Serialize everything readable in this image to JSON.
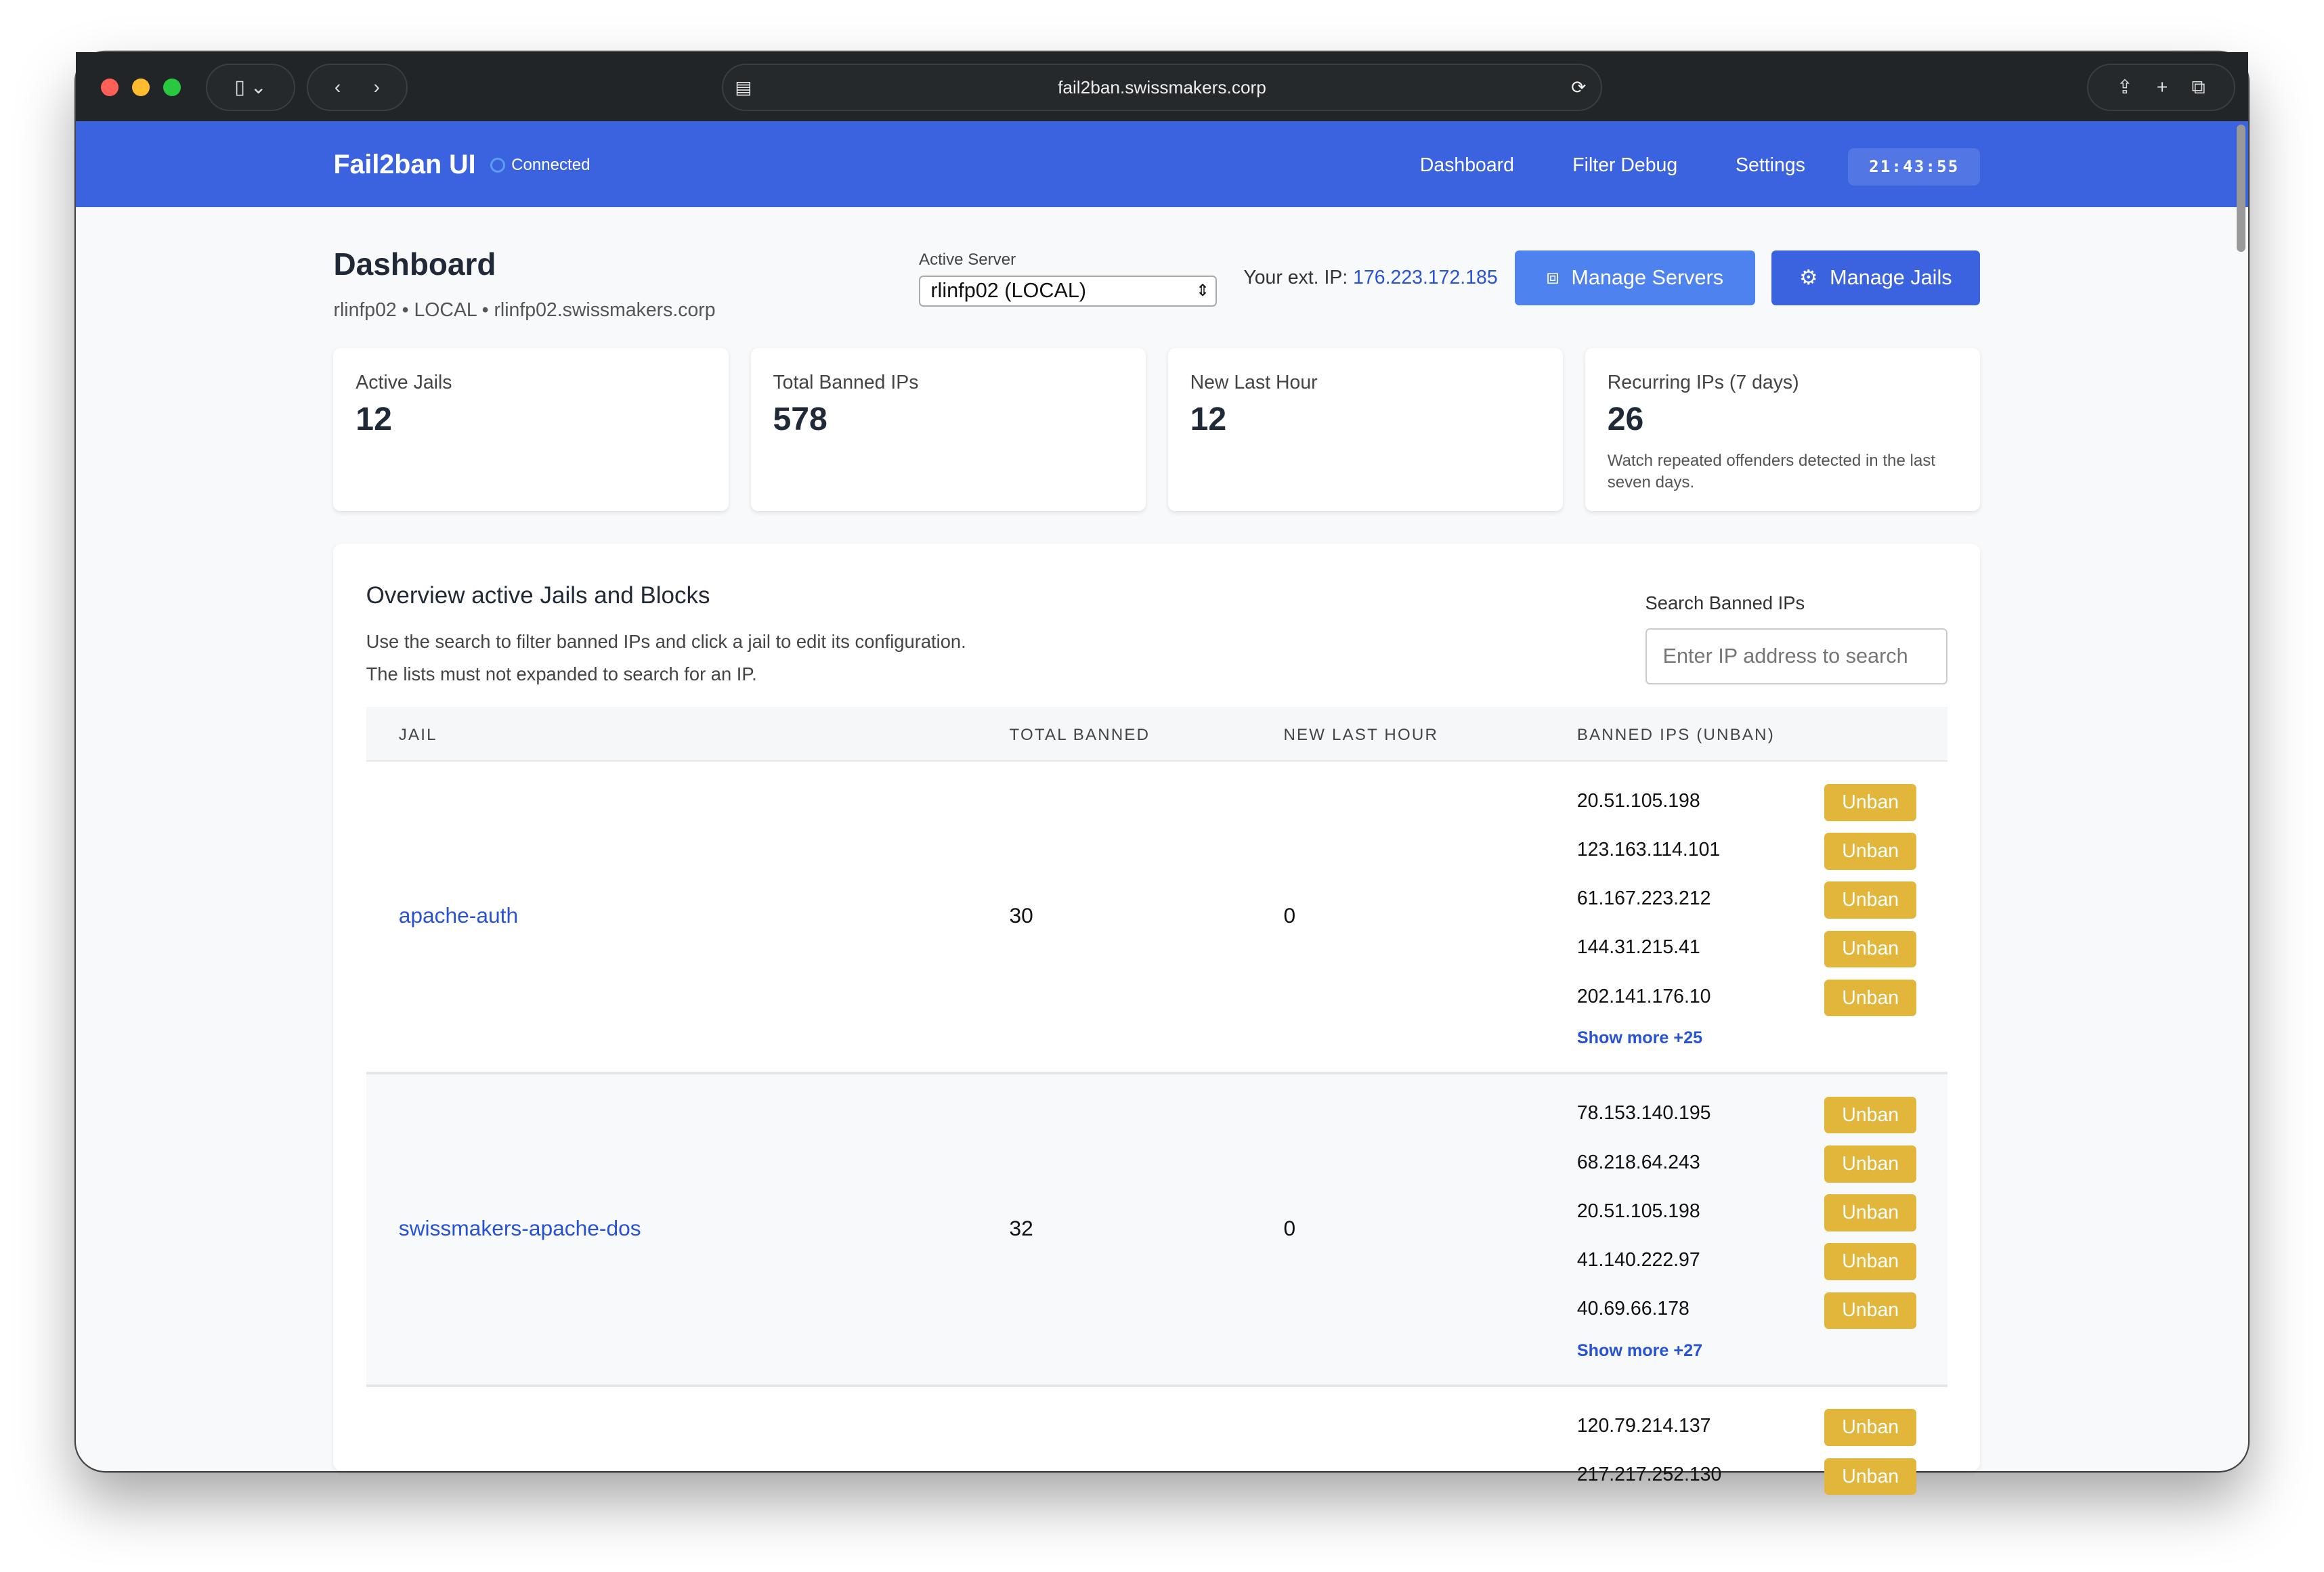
{
  "browser": {
    "url": "fail2ban.swissmakers.corp"
  },
  "nav": {
    "brand": "Fail2ban UI",
    "status": "Connected",
    "links": [
      "Dashboard",
      "Filter Debug",
      "Settings"
    ],
    "clock": "21:43:55",
    "color": "#3b63e0"
  },
  "header": {
    "title": "Dashboard",
    "subtitle": "rlinfp02 • LOCAL • rlinfp02.swissmakers.corp",
    "server_label": "Active Server",
    "server_value": "rlinfp02 (LOCAL)",
    "ext_ip_label": "Your ext. IP:",
    "ext_ip": "176.223.172.185",
    "manage_servers": "Manage Servers",
    "manage_jails": "Manage Jails"
  },
  "cards": [
    {
      "title": "Active Jails",
      "value": "12"
    },
    {
      "title": "Total Banned IPs",
      "value": "578"
    },
    {
      "title": "New Last Hour",
      "value": "12"
    },
    {
      "title": "Recurring IPs (7 days)",
      "value": "26",
      "desc": "Watch repeated offenders detected in the last seven days."
    }
  ],
  "overview": {
    "title": "Overview active Jails and Blocks",
    "desc1": "Use the search to filter banned IPs and click a jail to edit its configuration.",
    "desc2": "The lists must not expanded to search for an IP.",
    "search_label": "Search Banned IPs",
    "search_placeholder": "Enter IP address to search"
  },
  "table": {
    "columns": [
      "JAIL",
      "TOTAL BANNED",
      "NEW LAST HOUR",
      "BANNED IPS (UNBAN)"
    ],
    "unban_label": "Unban",
    "unban_color": "#e2b53b",
    "rows": [
      {
        "jail": "apache-auth",
        "total": "30",
        "new": "0",
        "ips": [
          "20.51.105.198",
          "123.163.114.101",
          "61.167.223.212",
          "144.31.215.41",
          "202.141.176.10"
        ],
        "more": "Show more +25"
      },
      {
        "jail": "swissmakers-apache-dos",
        "total": "32",
        "new": "0",
        "ips": [
          "78.153.140.195",
          "68.218.64.243",
          "20.51.105.198",
          "41.140.222.97",
          "40.69.66.178"
        ],
        "more": "Show more +27"
      },
      {
        "jail": "",
        "total": "",
        "new": "",
        "ips": [
          "120.79.214.137",
          "217.217.252.130"
        ],
        "more": ""
      }
    ]
  }
}
